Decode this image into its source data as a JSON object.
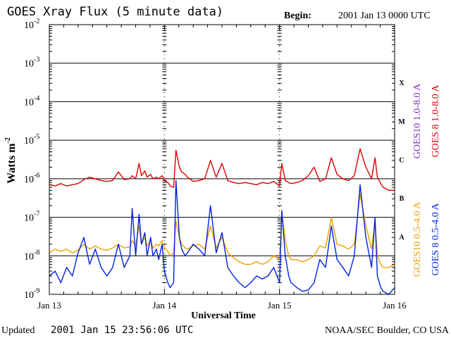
{
  "title": "GOES Xray Flux (5 minute data)",
  "begin_label": "Begin:",
  "begin_value": "2001 Jan 13 0000 UTC",
  "updated_label": "Updated",
  "updated_value": "2001 Jan 15 23:56:06 UTC",
  "credit": "NOAA/SEC Boulder, CO USA",
  "colors": {
    "goes8_long": "#dd0000",
    "goes10_long": "#7b2fbe",
    "goes10_short": "#f0a000",
    "goes8_short": "#0022dd",
    "grid": "#000000"
  },
  "chart_data": {
    "type": "line",
    "ylabel": "Watts m",
    "ylabel_sup": "-2",
    "xlabel": "Universal Time",
    "y_scale": "log",
    "ylim": [
      1e-09,
      0.01
    ],
    "y_ticks": [
      {
        "base": "10",
        "exp": "-2",
        "value": 0.01
      },
      {
        "base": "10",
        "exp": "-3",
        "value": 0.001
      },
      {
        "base": "10",
        "exp": "-4",
        "value": 0.0001
      },
      {
        "base": "10",
        "exp": "-5",
        "value": 1e-05
      },
      {
        "base": "10",
        "exp": "-6",
        "value": 1e-06
      },
      {
        "base": "10",
        "exp": "-7",
        "value": 1e-07
      },
      {
        "base": "10",
        "exp": "-8",
        "value": 1e-08
      },
      {
        "base": "10",
        "exp": "-9",
        "value": 1e-09
      }
    ],
    "x_ticks": [
      "Jan 13",
      "Jan 14",
      "Jan 15",
      "Jan 16"
    ],
    "xlim": [
      "2001-01-13",
      "2001-01-16"
    ],
    "flare_classes": [
      {
        "label": "X",
        "value": 0.0001
      },
      {
        "label": "M",
        "value": 1e-05
      },
      {
        "label": "C",
        "value": 1e-06
      },
      {
        "label": "B",
        "value": 1e-07
      },
      {
        "label": "A",
        "value": 1e-08
      }
    ],
    "legend_right": [
      {
        "name": "GOES10 1.0-8.0 A",
        "color": "#7b2fbe"
      },
      {
        "name": "GOES 8 1.0-8.0 A",
        "color": "#dd0000"
      }
    ],
    "legend_lower": [
      {
        "name": "GOES10 0.5-4.0 A",
        "color": "#f0a000"
      },
      {
        "name": "GOES 8 0.5-4.0 A",
        "color": "#0022dd"
      }
    ],
    "series": [
      {
        "name": "GOES 8 1.0-8.0 A",
        "color": "#dd0000",
        "x_days": [
          0.0,
          0.05,
          0.1,
          0.15,
          0.2,
          0.25,
          0.3,
          0.35,
          0.4,
          0.45,
          0.5,
          0.55,
          0.6,
          0.65,
          0.7,
          0.72,
          0.75,
          0.78,
          0.8,
          0.83,
          0.85,
          0.88,
          0.9,
          0.93,
          0.95,
          0.98,
          1.0,
          1.03,
          1.05,
          1.08,
          1.1,
          1.13,
          1.15,
          1.18,
          1.2,
          1.25,
          1.3,
          1.35,
          1.4,
          1.45,
          1.5,
          1.55,
          1.6,
          1.65,
          1.7,
          1.75,
          1.8,
          1.85,
          1.9,
          1.95,
          2.0,
          2.02,
          2.05,
          2.08,
          2.1,
          2.15,
          2.2,
          2.25,
          2.3,
          2.35,
          2.4,
          2.45,
          2.5,
          2.55,
          2.6,
          2.65,
          2.7,
          2.75,
          2.8,
          2.83,
          2.85,
          2.88,
          2.9,
          2.95,
          3.0
        ],
        "values": [
          7e-07,
          6.5e-07,
          7.5e-07,
          6.5e-07,
          7e-07,
          7.5e-07,
          9.5e-07,
          1.1e-06,
          1e-06,
          9e-07,
          8.5e-07,
          9e-07,
          1.5e-06,
          9.5e-07,
          1e-06,
          1.2e-06,
          1e-06,
          2.5e-06,
          1.2e-06,
          1.6e-06,
          1.1e-06,
          1.3e-06,
          1e-06,
          1.1e-06,
          1e-06,
          1.2e-06,
          9e-07,
          8e-07,
          6.5e-07,
          6e-07,
          5.5e-06,
          2e-06,
          1.5e-06,
          1.3e-06,
          1.1e-06,
          8.5e-07,
          9e-07,
          1e-06,
          3e-06,
          1.1e-06,
          2.5e-06,
          9e-07,
          8e-07,
          7.5e-07,
          8e-07,
          7.5e-07,
          7e-07,
          8e-07,
          7.5e-07,
          8.5e-07,
          6.5e-07,
          2.5e-06,
          9e-07,
          8e-07,
          7.5e-07,
          8e-07,
          9e-07,
          1.2e-06,
          2e-06,
          8.5e-07,
          1e-06,
          3.5e-06,
          1.3e-06,
          1e-06,
          9e-07,
          1.2e-06,
          6e-06,
          2e-06,
          1e-06,
          3.5e-06,
          1.1e-06,
          7.5e-07,
          6e-07,
          5e-07,
          5e-07
        ]
      },
      {
        "name": "GOES10 0.5-4.0 A",
        "color": "#f0a000",
        "x_days": [
          0.0,
          0.05,
          0.1,
          0.15,
          0.2,
          0.25,
          0.3,
          0.35,
          0.4,
          0.45,
          0.5,
          0.55,
          0.6,
          0.65,
          0.7,
          0.72,
          0.75,
          0.78,
          0.8,
          0.83,
          0.85,
          0.88,
          0.9,
          0.93,
          0.95,
          0.98,
          1.0,
          1.03,
          1.05,
          1.08,
          1.1,
          1.13,
          1.15,
          1.18,
          1.2,
          1.25,
          1.3,
          1.35,
          1.4,
          1.45,
          1.5,
          1.55,
          1.6,
          1.65,
          1.7,
          1.75,
          1.8,
          1.85,
          1.9,
          1.95,
          2.0,
          2.02,
          2.05,
          2.08,
          2.1,
          2.15,
          2.2,
          2.25,
          2.3,
          2.35,
          2.4,
          2.45,
          2.5,
          2.55,
          2.6,
          2.65,
          2.7,
          2.75,
          2.8,
          2.83,
          2.85,
          2.88,
          2.9,
          2.95,
          3.0
        ],
        "values": [
          1.2e-08,
          1.5e-08,
          1.3e-08,
          1.5e-08,
          1.2e-08,
          1.4e-08,
          2e-08,
          1.5e-08,
          1.8e-08,
          1.5e-08,
          1.4e-08,
          1.6e-08,
          2e-08,
          1.6e-08,
          1.7e-08,
          2.5e-08,
          1.8e-08,
          6e-08,
          2e-08,
          3e-08,
          1.8e-08,
          2.5e-08,
          1.6e-08,
          2e-08,
          1.8e-08,
          2.5e-08,
          1.6e-08,
          1.3e-08,
          1e-08,
          1.2e-08,
          8e-08,
          3e-08,
          2e-08,
          1.6e-08,
          1.5e-08,
          1.8e-08,
          2e-08,
          1.5e-08,
          6e-08,
          1.6e-08,
          3e-08,
          1.2e-08,
          9e-09,
          7e-09,
          6e-09,
          6e-09,
          7e-09,
          6e-09,
          7e-09,
          1e-08,
          8e-09,
          1.3e-07,
          2.5e-08,
          1e-08,
          8e-09,
          8e-09,
          7e-09,
          8e-09,
          1e-08,
          1.8e-08,
          1.6e-08,
          1e-07,
          2e-08,
          1.8e-08,
          1.5e-08,
          2e-08,
          4e-07,
          6e-08,
          1.5e-08,
          8e-08,
          1e-08,
          6e-09,
          5e-09,
          5e-09,
          6e-09
        ]
      },
      {
        "name": "GOES 8 0.5-4.0 A",
        "color": "#0022dd",
        "x_days": [
          0.0,
          0.05,
          0.1,
          0.15,
          0.2,
          0.25,
          0.3,
          0.35,
          0.4,
          0.45,
          0.5,
          0.55,
          0.6,
          0.65,
          0.7,
          0.72,
          0.75,
          0.78,
          0.8,
          0.83,
          0.85,
          0.88,
          0.9,
          0.93,
          0.95,
          0.98,
          1.0,
          1.03,
          1.05,
          1.08,
          1.1,
          1.13,
          1.15,
          1.18,
          1.2,
          1.25,
          1.3,
          1.35,
          1.4,
          1.45,
          1.5,
          1.55,
          1.6,
          1.65,
          1.7,
          1.75,
          1.8,
          1.85,
          1.9,
          1.95,
          2.0,
          2.02,
          2.05,
          2.08,
          2.1,
          2.15,
          2.2,
          2.25,
          2.3,
          2.35,
          2.4,
          2.45,
          2.5,
          2.55,
          2.6,
          2.65,
          2.7,
          2.75,
          2.8,
          2.83,
          2.85,
          2.88,
          2.9,
          2.95,
          3.0
        ],
        "values": [
          3e-09,
          4e-09,
          2e-09,
          5e-09,
          3e-09,
          1.2e-08,
          3e-08,
          6e-09,
          1.5e-08,
          5e-09,
          3e-09,
          5e-09,
          2e-08,
          5e-09,
          1e-08,
          1.7e-07,
          1e-08,
          1.2e-07,
          2e-08,
          4e-08,
          1e-08,
          3e-08,
          1e-08,
          1.5e-08,
          8e-09,
          2e-08,
          4e-09,
          2e-09,
          1.5e-09,
          2e-09,
          9e-07,
          3e-08,
          1.5e-08,
          1e-08,
          1.2e-08,
          2e-08,
          1.5e-08,
          1e-08,
          2e-07,
          1.2e-08,
          4e-08,
          5e-09,
          3e-09,
          2e-09,
          1.5e-09,
          2e-09,
          3e-09,
          2.5e-09,
          3e-09,
          5e-09,
          2e-09,
          1.5e-07,
          1e-08,
          3e-09,
          2e-09,
          1.5e-09,
          1.2e-09,
          1.3e-09,
          2e-09,
          8e-09,
          5e-09,
          6e-08,
          8e-09,
          5e-09,
          3e-09,
          1e-08,
          7e-07,
          3e-08,
          5e-09,
          1e-07,
          3e-09,
          1.5e-09,
          1.2e-09,
          1e-09,
          1.5e-09
        ]
      }
    ]
  }
}
